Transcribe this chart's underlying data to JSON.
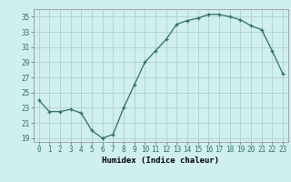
{
  "x": [
    0,
    1,
    2,
    3,
    4,
    5,
    6,
    7,
    8,
    9,
    10,
    11,
    12,
    13,
    14,
    15,
    16,
    17,
    18,
    19,
    20,
    21,
    22,
    23
  ],
  "y": [
    24.0,
    22.5,
    22.5,
    22.8,
    22.3,
    20.0,
    19.0,
    19.5,
    23.0,
    26.0,
    29.0,
    30.5,
    32.0,
    34.0,
    34.5,
    34.8,
    35.3,
    35.3,
    35.0,
    34.6,
    33.8,
    33.3,
    30.5,
    27.5
  ],
  "xlabel": "Humidex (Indice chaleur)",
  "xlim": [
    -0.5,
    23.5
  ],
  "ylim": [
    18.5,
    36.0
  ],
  "yticks": [
    19,
    21,
    23,
    25,
    27,
    29,
    31,
    33,
    35
  ],
  "xtick_labels": [
    "0",
    "1",
    "2",
    "3",
    "4",
    "5",
    "6",
    "7",
    "8",
    "9",
    "10",
    "11",
    "12",
    "13",
    "14",
    "15",
    "16",
    "17",
    "18",
    "19",
    "20",
    "21",
    "22",
    "23"
  ],
  "line_color": "#2e6e64",
  "marker": "+",
  "bg_color": "#cff0ee",
  "grid_color": "#aec8c4",
  "label_fontsize": 6.5,
  "tick_fontsize": 5.5
}
